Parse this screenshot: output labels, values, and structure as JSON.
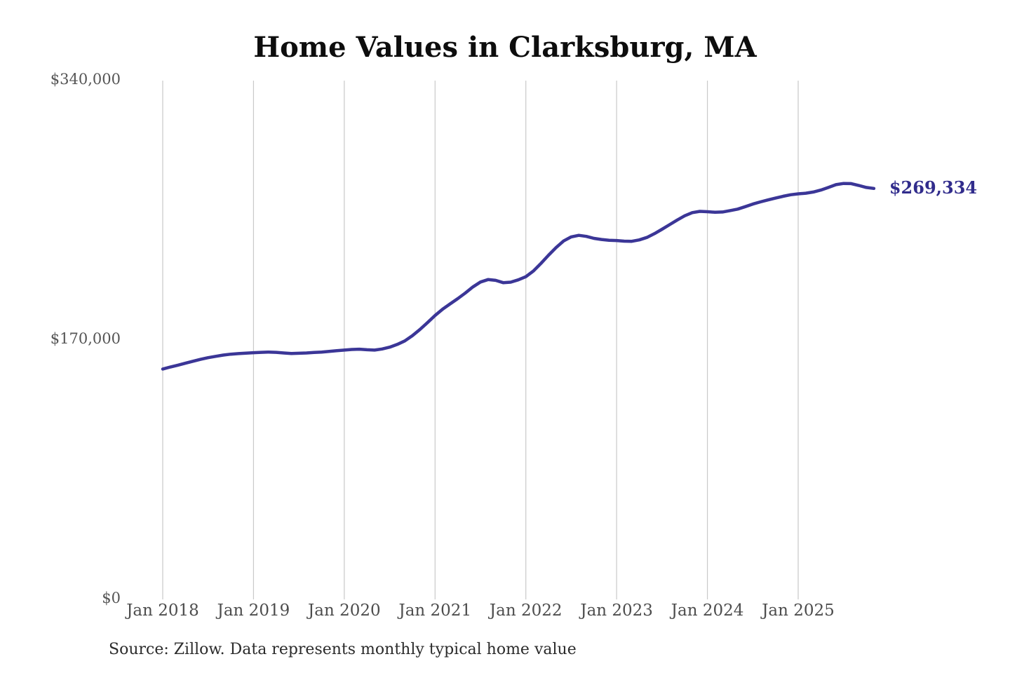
{
  "page": {
    "source_note": "Source: Zillow. Data represents monthly typical home value"
  },
  "colors": {
    "background": "#ffffff",
    "line": "#3b3697",
    "end_label": "#312c8c",
    "gridline": "#c9c9c9",
    "y_label": "#555555",
    "x_label": "#4d4d4d",
    "title": "#0d0d0d",
    "source": "#2b2b2b"
  },
  "chart_data": {
    "type": "line",
    "title": "Home Values in Clarksburg, MA",
    "xlabel": "",
    "ylabel": "",
    "ylim": [
      0,
      340000
    ],
    "grid": "vertical-only",
    "legend": "none",
    "frequency": "monthly",
    "x_start": "Jan 2018",
    "x_end": "Nov 2025",
    "y_ticks": [
      {
        "value": 340000,
        "label": "$340,000"
      },
      {
        "value": 170000,
        "label": "$170,000"
      },
      {
        "value": 0,
        "label": "$0"
      }
    ],
    "x_ticks": [
      "Jan 2018",
      "Jan 2019",
      "Jan 2020",
      "Jan 2021",
      "Jan 2022",
      "Jan 2023",
      "Jan 2024",
      "Jan 2025"
    ],
    "end_annotation": {
      "text": "$269,334",
      "value": 269334
    },
    "series": [
      {
        "name": "Monthly typical home value",
        "values": [
          151000,
          152300,
          153500,
          154800,
          156100,
          157300,
          158400,
          159300,
          160100,
          160700,
          161100,
          161400,
          161700,
          161900,
          162100,
          161900,
          161500,
          161200,
          161300,
          161500,
          161800,
          162100,
          162500,
          163000,
          163400,
          163800,
          164000,
          163600,
          163400,
          164100,
          165300,
          167100,
          169400,
          172800,
          176900,
          181400,
          186100,
          190200,
          193700,
          197100,
          200800,
          204800,
          208000,
          209600,
          209100,
          207600,
          207900,
          209400,
          211500,
          215200,
          220200,
          225600,
          230600,
          234900,
          237600,
          238600,
          237900,
          236600,
          235900,
          235400,
          235200,
          234800,
          234700,
          235600,
          237200,
          239700,
          242600,
          245600,
          248600,
          251400,
          253500,
          254300,
          254100,
          253700,
          253900,
          254800,
          255800,
          257400,
          259100,
          260500,
          261800,
          263000,
          264200,
          265200,
          265800,
          266200,
          267000,
          268300,
          270000,
          271800,
          272600,
          272500,
          271300,
          270000,
          269334
        ]
      }
    ]
  }
}
